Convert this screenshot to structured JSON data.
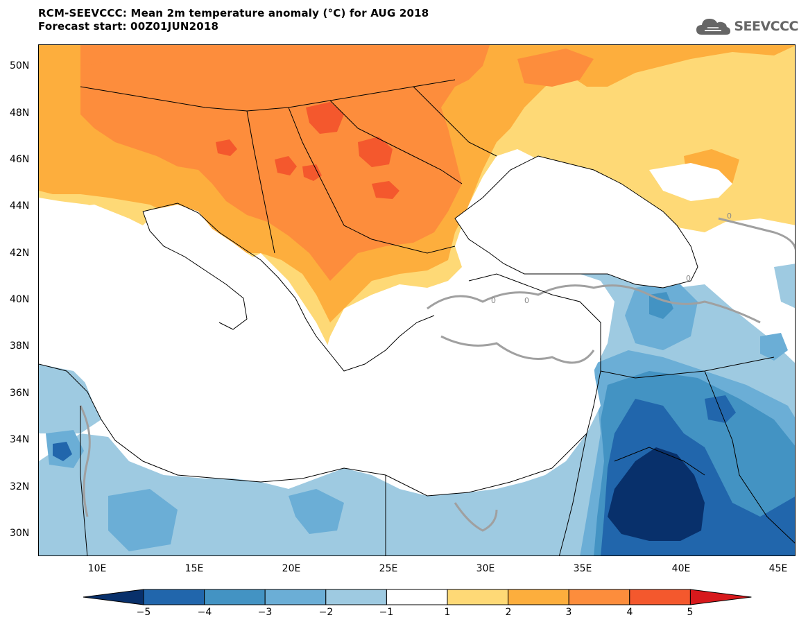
{
  "header": {
    "title_line1": "RCM-SEEVCCC: Mean 2m temperature anomaly (°C) for AUG 2018",
    "title_line2": "Forecast start: 00Z01JUN2018",
    "logo_text": "SEEVCCC",
    "logo_icon": "cloud-icon"
  },
  "map": {
    "lat_labels": [
      "50N",
      "48N",
      "46N",
      "44N",
      "42N",
      "40N",
      "38N",
      "36N",
      "34N",
      "32N",
      "30N"
    ],
    "lon_labels": [
      "10E",
      "15E",
      "20E",
      "25E",
      "30E",
      "35E",
      "40E",
      "45E"
    ],
    "lon_range": [
      7,
      46
    ],
    "lat_range": [
      29,
      51
    ],
    "contour_labels": [
      "0",
      "0",
      "0",
      "0"
    ],
    "colors": {
      "cold_5": "#08306b",
      "cold_4": "#2166ac",
      "cold_3": "#4393c3",
      "cold_2": "#6baed6",
      "cold_1": "#9ecae1",
      "neutral": "#ffffff",
      "warm_1": "#fed976",
      "warm_2": "#fdae3d",
      "warm_3": "#fd8d3c",
      "warm_4": "#f4582d",
      "warm_5": "#d7191c",
      "zero_contour": "#a0a0a0",
      "border": "#000000"
    }
  },
  "colorbar": {
    "labels": [
      "−5",
      "−4",
      "−3",
      "−2",
      "−1",
      "1",
      "2",
      "3",
      "4",
      "5"
    ],
    "colors": [
      "#08306b",
      "#2166ac",
      "#4393c3",
      "#6baed6",
      "#9ecae1",
      "#ffffff",
      "#fed976",
      "#fdae3d",
      "#fd8d3c",
      "#f4582d",
      "#d7191c"
    ]
  }
}
